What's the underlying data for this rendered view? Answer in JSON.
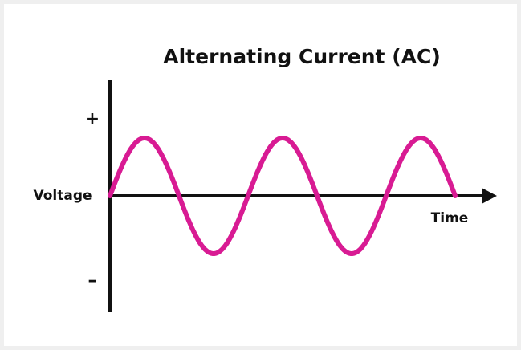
{
  "title": "Alternating Current (AC)",
  "axes": {
    "positive": "+",
    "y_label": "Voltage",
    "x_label": "Time",
    "negative": "–"
  }
}
